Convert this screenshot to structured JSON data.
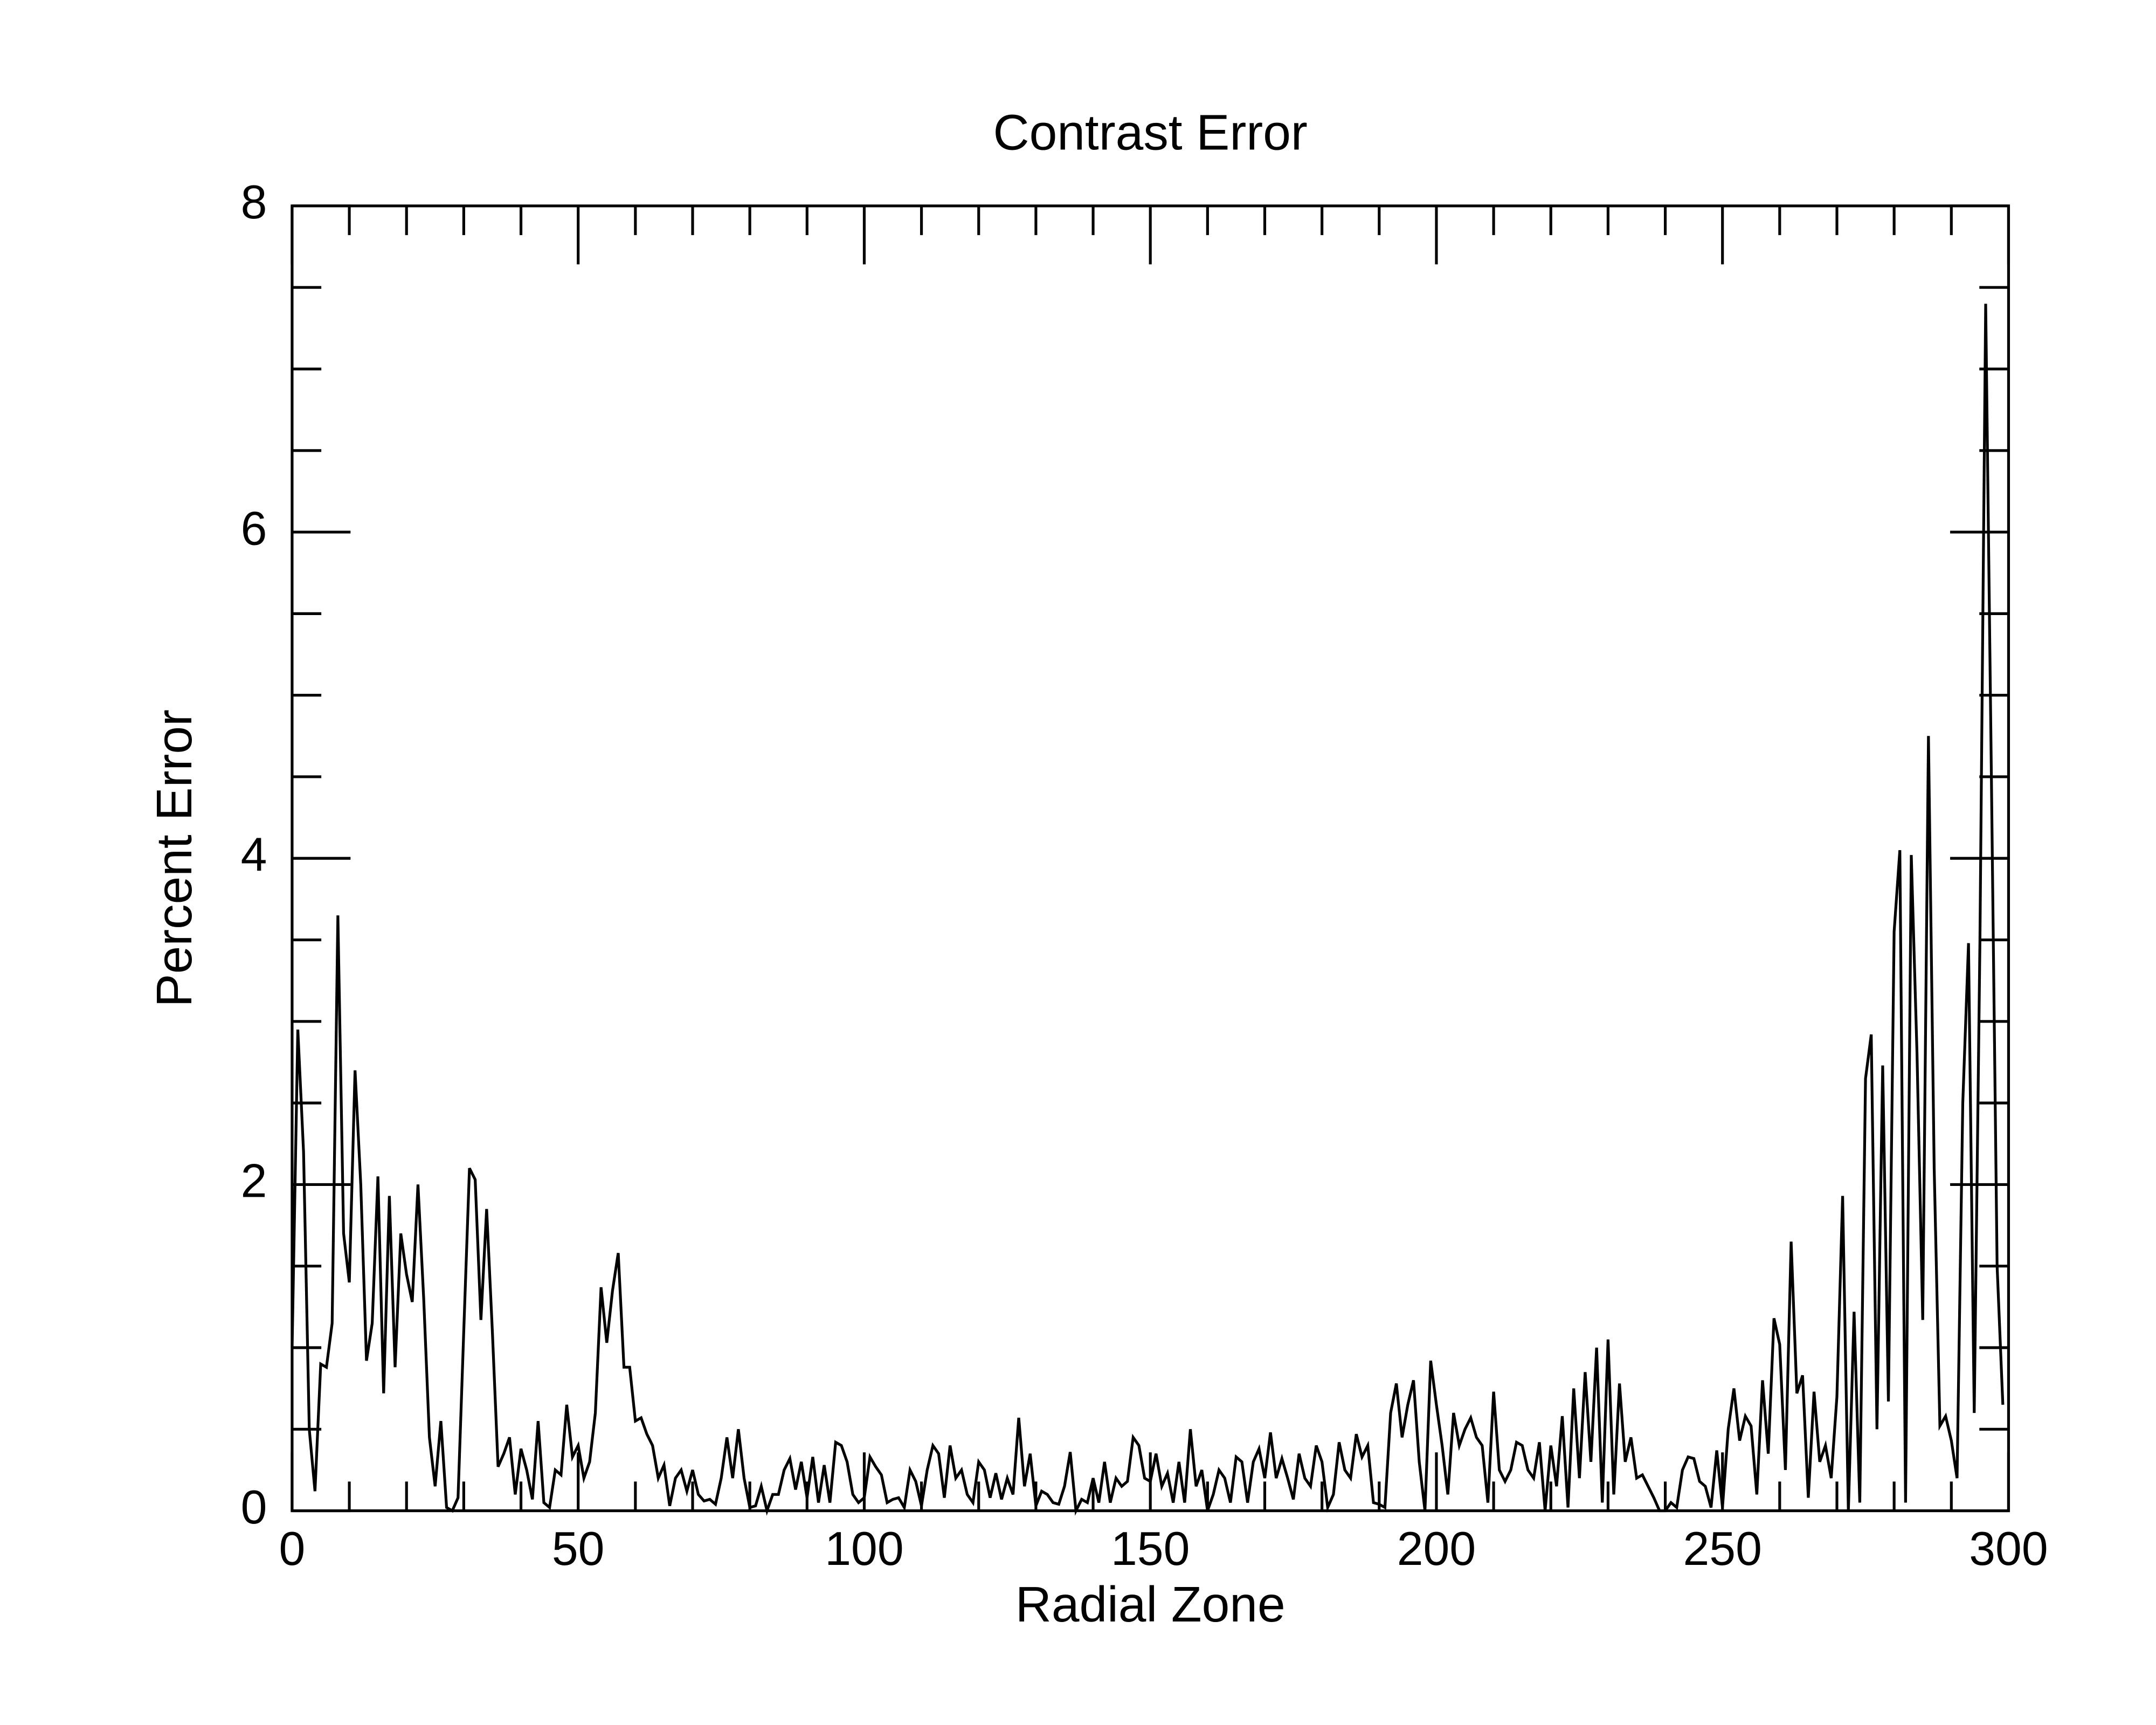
{
  "chart_data": {
    "type": "line",
    "title": "Contrast Error",
    "xlabel": "Radial Zone",
    "ylabel": "Percent Error",
    "xlim": [
      0,
      300
    ],
    "ylim": [
      0,
      8
    ],
    "xticks": [
      0,
      50,
      100,
      150,
      200,
      250,
      300
    ],
    "yticks": [
      0,
      2,
      4,
      6,
      8
    ],
    "xminorticks": [
      10,
      20,
      30,
      40,
      60,
      70,
      80,
      90,
      110,
      120,
      130,
      140,
      160,
      170,
      180,
      190,
      210,
      220,
      230,
      240,
      260,
      270,
      280,
      290
    ],
    "yminorticks": [
      0.5,
      1,
      1.5,
      2.5,
      3,
      3.5,
      4.5,
      5,
      5.5,
      6.5,
      7,
      7.5
    ],
    "color": "#000000",
    "x": [
      0,
      1,
      2,
      3,
      4,
      5,
      6,
      7,
      8,
      9,
      10,
      11,
      12,
      13,
      14,
      15,
      16,
      17,
      18,
      19,
      20,
      21,
      22,
      23,
      24,
      25,
      26,
      27,
      28,
      29,
      30,
      31,
      32,
      33,
      34,
      35,
      36,
      37,
      38,
      39,
      40,
      41,
      42,
      43,
      44,
      45,
      46,
      47,
      48,
      49,
      50,
      51,
      52,
      53,
      54,
      55,
      56,
      57,
      58,
      59,
      60,
      61,
      62,
      63,
      64,
      65,
      66,
      67,
      68,
      69,
      70,
      71,
      72,
      73,
      74,
      75,
      76,
      77,
      78,
      79,
      80,
      81,
      82,
      83,
      84,
      85,
      86,
      87,
      88,
      89,
      90,
      91,
      92,
      93,
      94,
      95,
      96,
      97,
      98,
      99,
      100,
      101,
      102,
      103,
      104,
      105,
      106,
      107,
      108,
      109,
      110,
      111,
      112,
      113,
      114,
      115,
      116,
      117,
      118,
      119,
      120,
      121,
      122,
      123,
      124,
      125,
      126,
      127,
      128,
      129,
      130,
      131,
      132,
      133,
      134,
      135,
      136,
      137,
      138,
      139,
      140,
      141,
      142,
      143,
      144,
      145,
      146,
      147,
      148,
      149,
      150,
      151,
      152,
      153,
      154,
      155,
      156,
      157,
      158,
      159,
      160,
      161,
      162,
      163,
      164,
      165,
      166,
      167,
      168,
      169,
      170,
      171,
      172,
      173,
      174,
      175,
      176,
      177,
      178,
      179,
      180,
      181,
      182,
      183,
      184,
      185,
      186,
      187,
      188,
      189,
      190,
      191,
      192,
      193,
      194,
      195,
      196,
      197,
      198,
      199,
      200,
      201,
      202,
      203,
      204,
      205,
      206,
      207,
      208,
      209,
      210,
      211,
      212,
      213,
      214,
      215,
      216,
      217,
      218,
      219,
      220,
      221,
      222,
      223,
      224,
      225,
      226,
      227,
      228,
      229,
      230,
      231,
      232,
      233,
      234,
      235,
      236,
      237,
      238,
      239,
      240,
      241,
      242,
      243,
      244,
      245,
      246,
      247,
      248,
      249,
      250,
      251,
      252,
      253,
      254,
      255,
      256,
      257,
      258,
      259,
      260,
      261,
      262,
      263,
      264,
      265,
      266,
      267,
      268,
      269,
      270,
      271,
      272,
      273,
      274,
      275,
      276,
      277,
      278,
      279,
      280,
      281,
      282,
      283,
      284,
      285,
      286,
      287,
      288,
      289,
      290,
      291,
      292,
      293,
      294,
      295,
      296,
      297,
      298,
      299
    ],
    "values": [
      1.0,
      2.95,
      2.2,
      0.5,
      0.12,
      0.9,
      0.88,
      1.15,
      3.65,
      1.7,
      1.4,
      2.7,
      2.0,
      0.92,
      1.15,
      2.05,
      0.72,
      1.93,
      0.88,
      1.7,
      1.45,
      1.28,
      2.0,
      1.3,
      0.45,
      0.15,
      0.55,
      0.02,
      0.0,
      0.08,
      1.1,
      2.1,
      2.03,
      1.17,
      1.85,
      1.1,
      0.27,
      0.35,
      0.45,
      0.1,
      0.38,
      0.25,
      0.07,
      0.55,
      0.05,
      0.02,
      0.25,
      0.22,
      0.65,
      0.33,
      0.4,
      0.2,
      0.3,
      0.6,
      1.37,
      1.03,
      1.35,
      1.58,
      0.88,
      0.88,
      0.55,
      0.57,
      0.47,
      0.4,
      0.2,
      0.28,
      0.03,
      0.2,
      0.25,
      0.12,
      0.25,
      0.1,
      0.06,
      0.07,
      0.04,
      0.2,
      0.45,
      0.2,
      0.5,
      0.2,
      0.02,
      0.03,
      0.15,
      0.0,
      0.1,
      0.1,
      0.25,
      0.32,
      0.13,
      0.3,
      0.08,
      0.33,
      0.05,
      0.28,
      0.05,
      0.42,
      0.4,
      0.3,
      0.1,
      0.05,
      0.08,
      0.33,
      0.27,
      0.22,
      0.05,
      0.07,
      0.08,
      0.02,
      0.25,
      0.18,
      0.03,
      0.25,
      0.4,
      0.35,
      0.08,
      0.4,
      0.2,
      0.25,
      0.1,
      0.05,
      0.3,
      0.25,
      0.08,
      0.23,
      0.07,
      0.2,
      0.1,
      0.57,
      0.15,
      0.35,
      0.03,
      0.12,
      0.1,
      0.05,
      0.04,
      0.15,
      0.36,
      0.0,
      0.07,
      0.05,
      0.2,
      0.05,
      0.3,
      0.05,
      0.2,
      0.15,
      0.18,
      0.45,
      0.4,
      0.2,
      0.18,
      0.35,
      0.15,
      0.23,
      0.05,
      0.3,
      0.05,
      0.5,
      0.15,
      0.25,
      0.0,
      0.1,
      0.25,
      0.2,
      0.05,
      0.33,
      0.3,
      0.05,
      0.3,
      0.38,
      0.2,
      0.48,
      0.2,
      0.32,
      0.2,
      0.07,
      0.35,
      0.2,
      0.15,
      0.4,
      0.3,
      0.02,
      0.1,
      0.42,
      0.25,
      0.2,
      0.47,
      0.33,
      0.4,
      0.05,
      0.04,
      0.02,
      0.6,
      0.78,
      0.45,
      0.65,
      0.8,
      0.3,
      0.0,
      0.92,
      0.65,
      0.4,
      0.1,
      0.6,
      0.4,
      0.5,
      0.57,
      0.45,
      0.4,
      0.05,
      0.73,
      0.25,
      0.18,
      0.25,
      0.42,
      0.4,
      0.25,
      0.2,
      0.42,
      0.0,
      0.4,
      0.15,
      0.58,
      0.02,
      0.75,
      0.2,
      0.85,
      0.3,
      1.0,
      0.05,
      1.05,
      0.1,
      0.78,
      0.3,
      0.45,
      0.2,
      0.22,
      0.15,
      0.08,
      0.0,
      0.0,
      0.05,
      0.02,
      0.25,
      0.33,
      0.32,
      0.18,
      0.15,
      0.02,
      0.37,
      0.02,
      0.5,
      0.75,
      0.43,
      0.58,
      0.52,
      0.1,
      0.8,
      0.35,
      1.18,
      1.02,
      0.25,
      1.65,
      0.72,
      0.83,
      0.08,
      0.73,
      0.3,
      0.4,
      0.2,
      0.7,
      1.93,
      0.0,
      1.22,
      0.05,
      2.65,
      2.92,
      0.5,
      2.73,
      0.67,
      3.55,
      4.05,
      0.05,
      4.02,
      2.8,
      1.17,
      4.75,
      2.1,
      0.52,
      0.58,
      0.43,
      0.2,
      2.5,
      3.48,
      0.6,
      3.5,
      7.4,
      4.5,
      1.5,
      0.65
    ]
  }
}
